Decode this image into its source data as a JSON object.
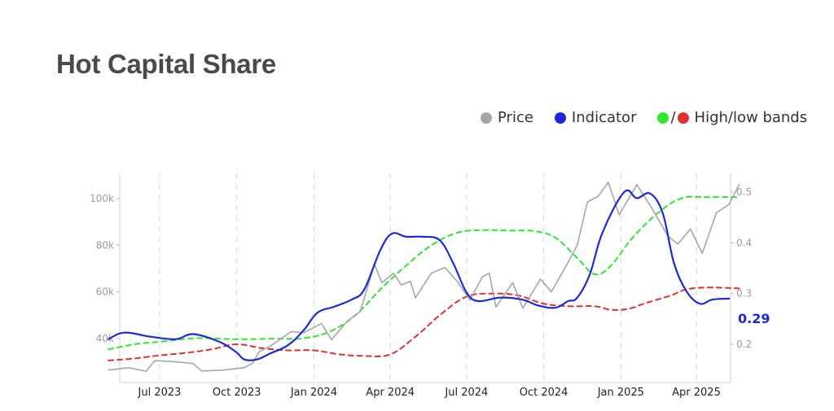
{
  "title": "Hot Capital Share",
  "legend": {
    "price_label": "Price",
    "indicator_label": "Indicator",
    "bands_separator": "/",
    "bands_label": "High/low bands"
  },
  "colors": {
    "price": "#a6a6a6",
    "indicator": "#1a2ad9",
    "high_band": "#2ee82e",
    "low_band": "#e03030",
    "title": "#4a4a4a"
  },
  "chart_data": {
    "type": "line",
    "title": "Hot Capital Share",
    "x_start": "2023-05",
    "x_end": "2025-05",
    "x_tick_labels": [
      "Jul 2023",
      "Oct 2023",
      "Jan 2024",
      "Apr 2024",
      "Jul 2024",
      "Oct 2024",
      "Jan 2025",
      "Apr 2025"
    ],
    "x_tick_dates": [
      "2023-07-01",
      "2023-10-01",
      "2024-01-01",
      "2024-04-01",
      "2024-07-01",
      "2024-10-01",
      "2025-01-01",
      "2025-04-01"
    ],
    "left_axis": {
      "label": "",
      "ylim": [
        22000,
        110000
      ],
      "ticks": [
        40000,
        60000,
        80000,
        100000
      ],
      "tick_labels": [
        "40k",
        "60k",
        "80k",
        "100k"
      ]
    },
    "right_axis": {
      "label": "",
      "ylim": [
        0.13,
        0.53
      ],
      "ticks": [
        0.2,
        0.3,
        0.4,
        0.5
      ],
      "tick_labels": [
        "0.2",
        "0.3",
        "0.4",
        "0.5"
      ]
    },
    "grid": "vertical dashed at x ticks",
    "legend_position": "top-right",
    "last_value_label": "0.29",
    "series": [
      {
        "name": "Price",
        "axis": "left",
        "style": "solid",
        "points": [
          [
            "2023-05-01",
            26500
          ],
          [
            "2023-05-25",
            27500
          ],
          [
            "2023-06-15",
            26000
          ],
          [
            "2023-06-25",
            30500
          ],
          [
            "2023-07-15",
            30200
          ],
          [
            "2023-08-10",
            29300
          ],
          [
            "2023-08-20",
            26100
          ],
          [
            "2023-09-15",
            26500
          ],
          [
            "2023-10-10",
            27500
          ],
          [
            "2023-10-20",
            29500
          ],
          [
            "2023-10-28",
            34500
          ],
          [
            "2023-11-10",
            36800
          ],
          [
            "2023-12-05",
            43000
          ],
          [
            "2023-12-20",
            42500
          ],
          [
            "2024-01-10",
            46500
          ],
          [
            "2024-01-22",
            39500
          ],
          [
            "2024-02-10",
            47500
          ],
          [
            "2024-02-25",
            51500
          ],
          [
            "2024-03-05",
            62000
          ],
          [
            "2024-03-13",
            72000
          ],
          [
            "2024-03-22",
            64000
          ],
          [
            "2024-04-05",
            68000
          ],
          [
            "2024-04-14",
            63000
          ],
          [
            "2024-04-25",
            64500
          ],
          [
            "2024-05-01",
            57500
          ],
          [
            "2024-05-20",
            68000
          ],
          [
            "2024-06-05",
            70500
          ],
          [
            "2024-06-20",
            64500
          ],
          [
            "2024-07-05",
            56500
          ],
          [
            "2024-07-20",
            66500
          ],
          [
            "2024-07-28",
            68000
          ],
          [
            "2024-08-05",
            53500
          ],
          [
            "2024-08-25",
            64000
          ],
          [
            "2024-09-06",
            53000
          ],
          [
            "2024-09-27",
            65500
          ],
          [
            "2024-10-10",
            60000
          ],
          [
            "2024-10-29",
            72000
          ],
          [
            "2024-11-10",
            80000
          ],
          [
            "2024-11-22",
            98500
          ],
          [
            "2024-12-05",
            101000
          ],
          [
            "2024-12-17",
            107000
          ],
          [
            "2024-12-30",
            93000
          ],
          [
            "2025-01-20",
            106000
          ],
          [
            "2025-02-05",
            97000
          ],
          [
            "2025-02-26",
            84000
          ],
          [
            "2025-03-10",
            80500
          ],
          [
            "2025-03-25",
            87000
          ],
          [
            "2025-04-08",
            76500
          ],
          [
            "2025-04-25",
            94000
          ],
          [
            "2025-05-10",
            97500
          ],
          [
            "2025-05-22",
            106000
          ]
        ]
      },
      {
        "name": "Indicator",
        "axis": "right",
        "style": "solid",
        "points": [
          [
            "2023-05-01",
            0.21
          ],
          [
            "2023-05-20",
            0.223
          ],
          [
            "2023-06-20",
            0.215
          ],
          [
            "2023-07-20",
            0.21
          ],
          [
            "2023-08-10",
            0.22
          ],
          [
            "2023-09-10",
            0.205
          ],
          [
            "2023-09-30",
            0.185
          ],
          [
            "2023-10-10",
            0.17
          ],
          [
            "2023-10-25",
            0.17
          ],
          [
            "2023-11-10",
            0.182
          ],
          [
            "2023-12-01",
            0.198
          ],
          [
            "2023-12-20",
            0.228
          ],
          [
            "2024-01-05",
            0.262
          ],
          [
            "2024-01-25",
            0.274
          ],
          [
            "2024-02-15",
            0.288
          ],
          [
            "2024-03-01",
            0.308
          ],
          [
            "2024-03-20",
            0.385
          ],
          [
            "2024-04-03",
            0.418
          ],
          [
            "2024-04-20",
            0.412
          ],
          [
            "2024-05-10",
            0.412
          ],
          [
            "2024-05-30",
            0.405
          ],
          [
            "2024-06-15",
            0.36
          ],
          [
            "2024-07-01",
            0.302
          ],
          [
            "2024-07-15",
            0.285
          ],
          [
            "2024-08-10",
            0.292
          ],
          [
            "2024-09-05",
            0.288
          ],
          [
            "2024-09-25",
            0.276
          ],
          [
            "2024-10-15",
            0.272
          ],
          [
            "2024-10-30",
            0.285
          ],
          [
            "2024-11-10",
            0.292
          ],
          [
            "2024-11-25",
            0.338
          ],
          [
            "2024-12-10",
            0.42
          ],
          [
            "2025-01-05",
            0.5
          ],
          [
            "2025-01-20",
            0.488
          ],
          [
            "2025-02-05",
            0.497
          ],
          [
            "2025-02-20",
            0.458
          ],
          [
            "2025-03-05",
            0.362
          ],
          [
            "2025-03-20",
            0.305
          ],
          [
            "2025-04-05",
            0.28
          ],
          [
            "2025-04-20",
            0.288
          ],
          [
            "2025-05-10",
            0.29
          ]
        ]
      },
      {
        "name": "High band",
        "axis": "right",
        "style": "dashed",
        "points": [
          [
            "2023-05-01",
            0.19
          ],
          [
            "2023-06-01",
            0.2
          ],
          [
            "2023-07-01",
            0.205
          ],
          [
            "2023-08-15",
            0.212
          ],
          [
            "2023-10-01",
            0.21
          ],
          [
            "2023-11-15",
            0.211
          ],
          [
            "2023-12-20",
            0.212
          ],
          [
            "2024-01-20",
            0.225
          ],
          [
            "2024-02-20",
            0.258
          ],
          [
            "2024-03-20",
            0.308
          ],
          [
            "2024-04-20",
            0.355
          ],
          [
            "2024-05-20",
            0.395
          ],
          [
            "2024-06-20",
            0.42
          ],
          [
            "2024-07-20",
            0.425
          ],
          [
            "2024-08-20",
            0.424
          ],
          [
            "2024-09-20",
            0.423
          ],
          [
            "2024-10-15",
            0.41
          ],
          [
            "2024-11-10",
            0.37
          ],
          [
            "2024-12-01",
            0.338
          ],
          [
            "2024-12-20",
            0.355
          ],
          [
            "2025-01-15",
            0.41
          ],
          [
            "2025-02-15",
            0.46
          ],
          [
            "2025-03-15",
            0.488
          ],
          [
            "2025-04-15",
            0.49
          ],
          [
            "2025-05-22",
            0.49
          ]
        ]
      },
      {
        "name": "Low band",
        "axis": "right",
        "style": "dashed",
        "points": [
          [
            "2023-05-01",
            0.168
          ],
          [
            "2023-06-01",
            0.172
          ],
          [
            "2023-07-01",
            0.178
          ],
          [
            "2023-08-01",
            0.183
          ],
          [
            "2023-09-01",
            0.19
          ],
          [
            "2023-10-01",
            0.2
          ],
          [
            "2023-11-01",
            0.192
          ],
          [
            "2023-12-01",
            0.188
          ],
          [
            "2024-01-01",
            0.188
          ],
          [
            "2024-02-01",
            0.18
          ],
          [
            "2024-03-01",
            0.177
          ],
          [
            "2024-04-01",
            0.18
          ],
          [
            "2024-05-01",
            0.215
          ],
          [
            "2024-06-01",
            0.26
          ],
          [
            "2024-07-01",
            0.294
          ],
          [
            "2024-08-01",
            0.3
          ],
          [
            "2024-09-01",
            0.296
          ],
          [
            "2024-10-01",
            0.28
          ],
          [
            "2024-11-01",
            0.275
          ],
          [
            "2024-12-01",
            0.275
          ],
          [
            "2024-12-20",
            0.268
          ],
          [
            "2025-01-10",
            0.27
          ],
          [
            "2025-02-01",
            0.282
          ],
          [
            "2025-03-01",
            0.296
          ],
          [
            "2025-03-20",
            0.308
          ],
          [
            "2025-04-15",
            0.312
          ],
          [
            "2025-05-22",
            0.31
          ]
        ]
      }
    ]
  }
}
